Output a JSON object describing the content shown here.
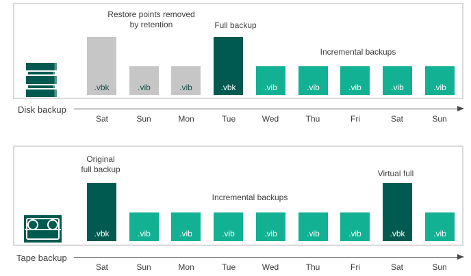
{
  "colors": {
    "dark_green": "#015A4F",
    "teal": "#12B193",
    "removed_gray": "#C6C6C6",
    "panel_border": "#D9D9D9",
    "text": "#3C3C3C",
    "axis": "#4A4A4A",
    "ext_on_gray": "#164F48",
    "ext_on_color": "#FFFFFF",
    "background": "#FFFFFF"
  },
  "panels": [
    {
      "axis_label": "Disk backup",
      "icon": "disk-storage-icon",
      "annotations": {
        "retention": "Restore points removed\nby retention",
        "full": "Full backup",
        "incremental": "Incremental backups"
      },
      "days": [
        "Sat",
        "Sun",
        "Mon",
        "Tue",
        "Wed",
        "Thu",
        "Fri",
        "Sat",
        "Sun"
      ],
      "bars": [
        {
          "day": "Sat",
          "ext": ".vbk",
          "kind": "full",
          "status": "removed"
        },
        {
          "day": "Sun",
          "ext": ".vib",
          "kind": "incremental",
          "status": "removed"
        },
        {
          "day": "Mon",
          "ext": ".vib",
          "kind": "incremental",
          "status": "removed"
        },
        {
          "day": "Tue",
          "ext": ".vbk",
          "kind": "full",
          "status": "active"
        },
        {
          "day": "Wed",
          "ext": ".vib",
          "kind": "incremental",
          "status": "active"
        },
        {
          "day": "Thu",
          "ext": ".vib",
          "kind": "incremental",
          "status": "active"
        },
        {
          "day": "Fri",
          "ext": ".vib",
          "kind": "incremental",
          "status": "active"
        },
        {
          "day": "Sat",
          "ext": ".vib",
          "kind": "incremental",
          "status": "active"
        },
        {
          "day": "Sun",
          "ext": ".vib",
          "kind": "incremental",
          "status": "active"
        }
      ]
    },
    {
      "axis_label": "Tape backup",
      "icon": "tape-cassette-icon",
      "annotations": {
        "original_full": "Original\nfull backup",
        "incremental": "Incremental backups",
        "virtual_full": "Virtual full"
      },
      "days": [
        "Sat",
        "Sun",
        "Mon",
        "Tue",
        "Wed",
        "Thu",
        "Fri",
        "Sat",
        "Sun"
      ],
      "bars": [
        {
          "day": "Sat",
          "ext": ".vbk",
          "kind": "full",
          "status": "active"
        },
        {
          "day": "Sun",
          "ext": ".vib",
          "kind": "incremental",
          "status": "active"
        },
        {
          "day": "Mon",
          "ext": ".vib",
          "kind": "incremental",
          "status": "active"
        },
        {
          "day": "Tue",
          "ext": ".vib",
          "kind": "incremental",
          "status": "active"
        },
        {
          "day": "Wed",
          "ext": ".vib",
          "kind": "incremental",
          "status": "active"
        },
        {
          "day": "Thu",
          "ext": ".vib",
          "kind": "incremental",
          "status": "active"
        },
        {
          "day": "Fri",
          "ext": ".vib",
          "kind": "incremental",
          "status": "active"
        },
        {
          "day": "Sat",
          "ext": ".vbk",
          "kind": "full",
          "status": "active"
        },
        {
          "day": "Sun",
          "ext": ".vib",
          "kind": "incremental",
          "status": "active"
        }
      ]
    }
  ]
}
